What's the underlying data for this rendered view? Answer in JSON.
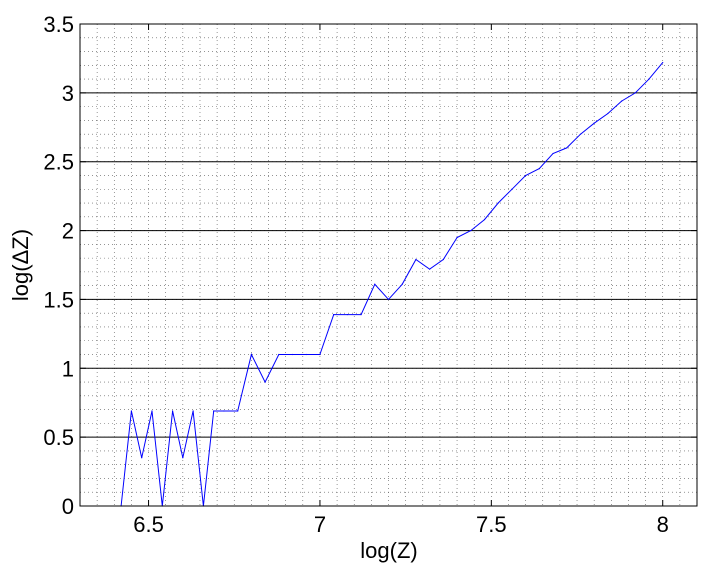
{
  "chart_data": {
    "type": "line",
    "title": "",
    "xlabel": "log(Z)",
    "ylabel": "log(ΔZ)",
    "xlim": [
      6.3,
      8.1
    ],
    "ylim": [
      0,
      3.5
    ],
    "xticks": [
      6.5,
      7,
      7.5,
      8
    ],
    "xtick_labels": [
      "6.5",
      "7",
      "7.5",
      "8"
    ],
    "yticks": [
      0,
      0.5,
      1,
      1.5,
      2,
      2.5,
      3,
      3.5
    ],
    "ytick_labels": [
      "0",
      "0.5",
      "1",
      "1.5",
      "2",
      "2.5",
      "3",
      "3.5"
    ],
    "grid": {
      "major_y": true,
      "minor_dotted": true
    },
    "series": [
      {
        "color": "#0000ff",
        "x": [
          6.42,
          6.45,
          6.48,
          6.51,
          6.54,
          6.57,
          6.6,
          6.63,
          6.66,
          6.69,
          6.72,
          6.76,
          6.8,
          6.84,
          6.88,
          6.92,
          6.96,
          7.0,
          7.04,
          7.08,
          7.12,
          7.16,
          7.2,
          7.24,
          7.28,
          7.32,
          7.36,
          7.4,
          7.44,
          7.48,
          7.52,
          7.56,
          7.6,
          7.64,
          7.68,
          7.72,
          7.76,
          7.8,
          7.84,
          7.88,
          7.92,
          7.96,
          8.0
        ],
        "y": [
          0.0,
          0.69,
          0.35,
          0.69,
          0.0,
          0.69,
          0.35,
          0.69,
          0.0,
          0.69,
          0.69,
          0.69,
          1.1,
          0.9,
          1.1,
          1.1,
          1.1,
          1.1,
          1.39,
          1.39,
          1.39,
          1.61,
          1.5,
          1.61,
          1.79,
          1.72,
          1.79,
          1.95,
          2.0,
          2.08,
          2.2,
          2.3,
          2.4,
          2.45,
          2.56,
          2.6,
          2.7,
          2.78,
          2.85,
          2.94,
          3.0,
          3.1,
          3.22
        ]
      }
    ]
  }
}
